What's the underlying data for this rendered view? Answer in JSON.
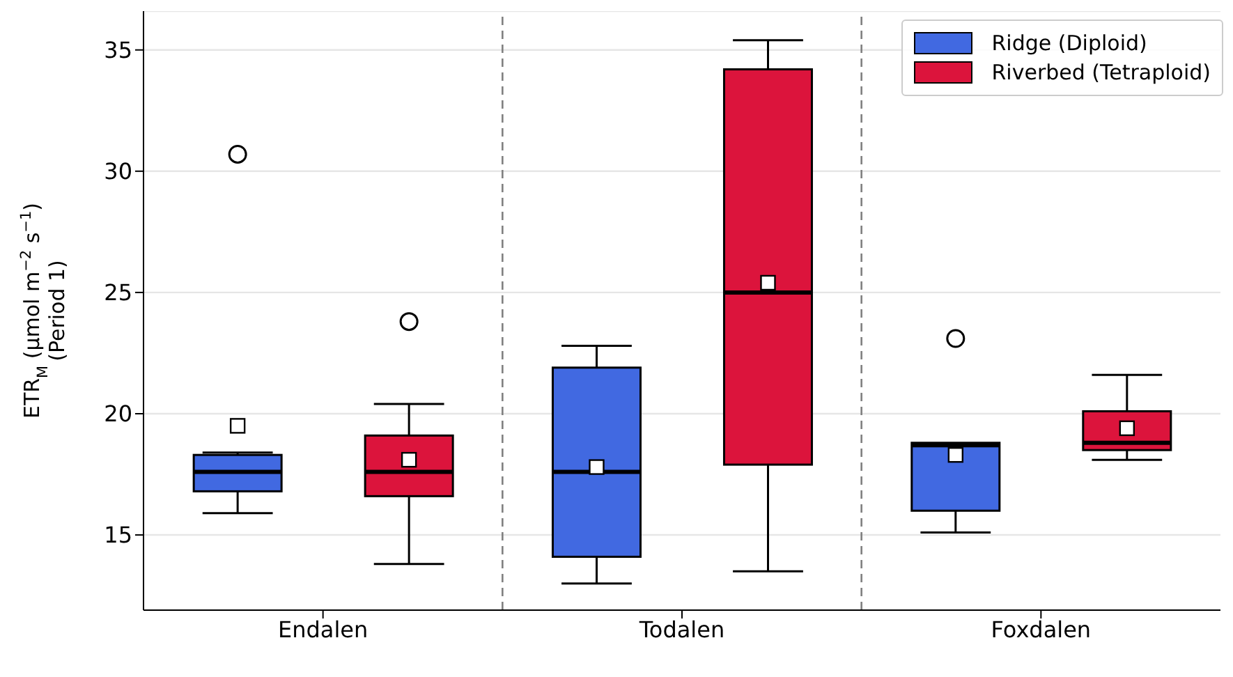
{
  "chart_data": {
    "type": "box",
    "ylabel": "ETR$_{M}$ (µmol m$^{−2}$ s$^{−1}$)\n(Period 1)",
    "categories": [
      "Endalen",
      "Todalen",
      "Foxdalen"
    ],
    "series": [
      {
        "name": "Ridge (Diploid)",
        "color": "#4169e1",
        "boxes": [
          {
            "low": 15.9,
            "q1": 16.8,
            "median": 17.6,
            "q3": 18.3,
            "high": 18.4,
            "mean": 19.5,
            "outliers": [
              30.7
            ]
          },
          {
            "low": 13.0,
            "q1": 14.1,
            "median": 17.6,
            "q3": 21.9,
            "high": 22.8,
            "mean": 17.8
          },
          {
            "low": 15.1,
            "q1": 16.0,
            "median": 18.7,
            "q3": 18.8,
            "high": 18.8,
            "mean": 18.3,
            "outliers": [
              23.1
            ]
          }
        ]
      },
      {
        "name": "Riverbed (Tetraploid)",
        "color": "#dc143c",
        "boxes": [
          {
            "low": 13.8,
            "q1": 16.6,
            "median": 17.6,
            "q3": 19.1,
            "high": 20.4,
            "mean": 18.1,
            "outliers": [
              23.8
            ]
          },
          {
            "low": 13.5,
            "q1": 17.9,
            "median": 25.0,
            "q3": 34.2,
            "high": 35.4,
            "mean": 25.4
          },
          {
            "low": 18.1,
            "q1": 18.5,
            "median": 18.8,
            "q3": 20.1,
            "high": 21.6,
            "mean": 19.4
          }
        ]
      }
    ],
    "ylim": [
      11.9,
      36.6
    ],
    "yticks": [
      15,
      20,
      25,
      30,
      35
    ],
    "grid": "y",
    "legend": "top right"
  }
}
